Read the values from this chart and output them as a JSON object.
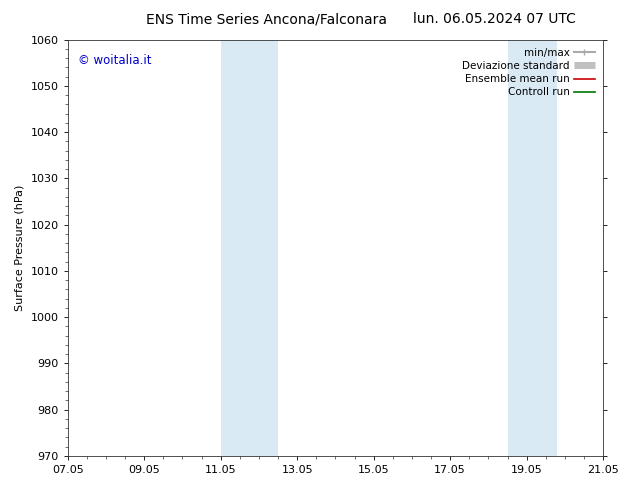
{
  "title_left": "ENS Time Series Ancona/Falconara",
  "title_right": "lun. 06.05.2024 07 UTC",
  "ylabel": "Surface Pressure (hPa)",
  "ylim": [
    970,
    1060
  ],
  "yticks": [
    970,
    980,
    990,
    1000,
    1010,
    1020,
    1030,
    1040,
    1050,
    1060
  ],
  "xlabels": [
    "07.05",
    "09.05",
    "11.05",
    "13.05",
    "15.05",
    "17.05",
    "19.05",
    "21.05"
  ],
  "xvalues": [
    0,
    2,
    4,
    6,
    8,
    10,
    12,
    14
  ],
  "watermark": "© woitalia.it",
  "shade_bands": [
    {
      "xmin": 4.0,
      "xmax": 5.5,
      "color": "#daeaf5"
    },
    {
      "xmin": 11.5,
      "xmax": 12.8,
      "color": "#daeaf5"
    }
  ],
  "legend_entries": [
    {
      "label": "min/max",
      "color": "#aaaaaa",
      "lw": 1.5,
      "style": "errorbar"
    },
    {
      "label": "Deviazione standard",
      "color": "#c0c0c0",
      "lw": 5,
      "style": "bar"
    },
    {
      "label": "Ensemble mean run",
      "color": "#cc0000",
      "lw": 1.2,
      "style": "line"
    },
    {
      "label": "Controll run",
      "color": "#007700",
      "lw": 1.2,
      "style": "line"
    }
  ],
  "background_color": "#ffffff",
  "plot_bg_color": "#ffffff",
  "title_fontsize": 10,
  "axis_label_fontsize": 8,
  "tick_fontsize": 8,
  "watermark_color": "#0000cc",
  "watermark_fontsize": 8.5
}
